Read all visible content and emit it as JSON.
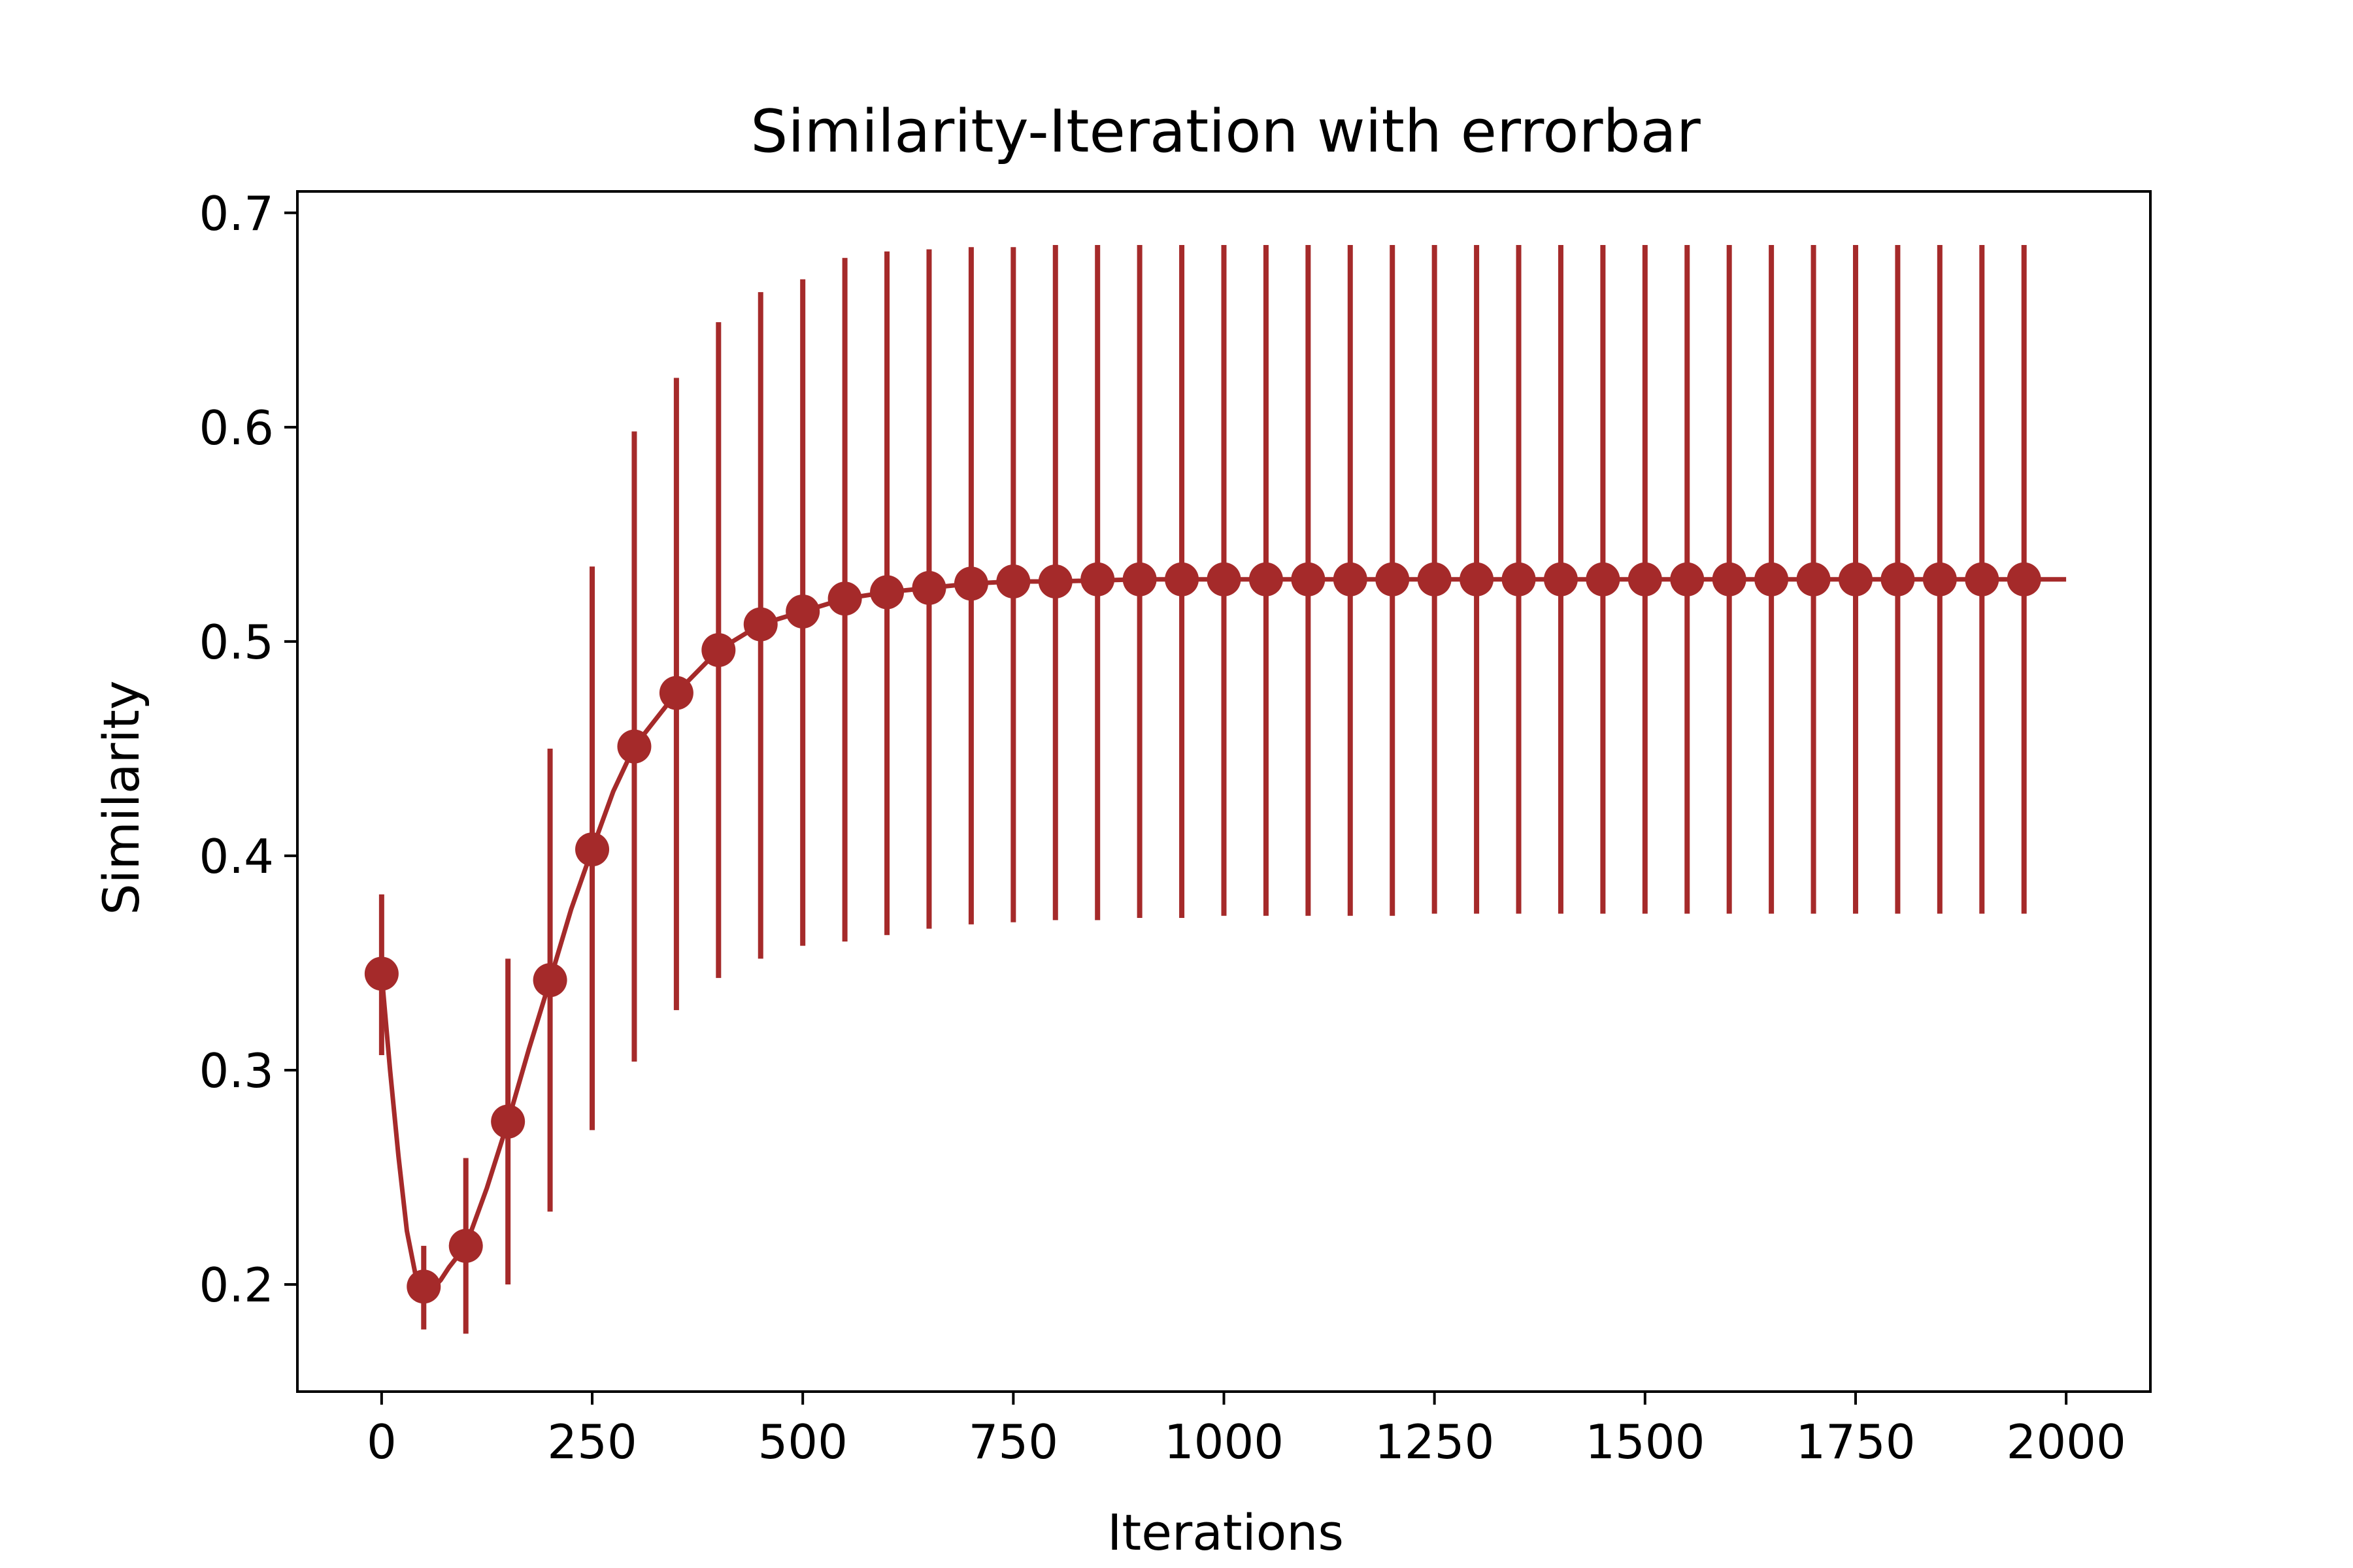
{
  "chart_data": {
    "type": "line",
    "title": "Similarity-Iteration with errorbar",
    "xlabel": "Iterations",
    "ylabel": "Similarity",
    "xlim": [
      -100,
      2100
    ],
    "ylim": [
      0.15,
      0.71
    ],
    "x_ticks": [
      0,
      250,
      500,
      750,
      1000,
      1250,
      1500,
      1750,
      2000
    ],
    "y_ticks": [
      0.2,
      0.3,
      0.4,
      0.5,
      0.6,
      0.7
    ],
    "x_tick_labels": [
      "0",
      "250",
      "500",
      "750",
      "1000",
      "1250",
      "1500",
      "1750",
      "2000"
    ],
    "y_tick_labels": [
      "0.2",
      "0.3",
      "0.4",
      "0.5",
      "0.6",
      "0.7"
    ],
    "grid": false,
    "color": "#a52a2a",
    "line": {
      "x": [
        0,
        10,
        20,
        30,
        40,
        50,
        60,
        70,
        80,
        90,
        100,
        125,
        150,
        175,
        200,
        225,
        250,
        275,
        300,
        350,
        400,
        450,
        500,
        550,
        600,
        650,
        700,
        750,
        800,
        900,
        1000,
        1200,
        1400,
        1600,
        1800,
        1950,
        2000
      ],
      "y": [
        0.345,
        0.3,
        0.26,
        0.225,
        0.205,
        0.197,
        0.198,
        0.202,
        0.208,
        0.213,
        0.218,
        0.245,
        0.276,
        0.31,
        0.342,
        0.375,
        0.403,
        0.43,
        0.451,
        0.476,
        0.496,
        0.508,
        0.514,
        0.52,
        0.523,
        0.525,
        0.527,
        0.528,
        0.528,
        0.529,
        0.529,
        0.529,
        0.529,
        0.529,
        0.529,
        0.529,
        0.529
      ]
    },
    "errorbar_series": {
      "x": [
        0,
        50,
        100,
        150,
        200,
        250,
        300,
        350,
        400,
        450,
        500,
        550,
        600,
        650,
        700,
        750,
        800,
        850,
        900,
        950,
        1000,
        1050,
        1100,
        1150,
        1200,
        1250,
        1300,
        1350,
        1400,
        1450,
        1500,
        1550,
        1600,
        1650,
        1700,
        1750,
        1800,
        1850,
        1900,
        1950
      ],
      "y": [
        0.345,
        0.199,
        0.218,
        0.276,
        0.342,
        0.403,
        0.451,
        0.476,
        0.496,
        0.508,
        0.514,
        0.52,
        0.523,
        0.525,
        0.527,
        0.528,
        0.528,
        0.529,
        0.529,
        0.529,
        0.529,
        0.529,
        0.529,
        0.529,
        0.529,
        0.529,
        0.529,
        0.529,
        0.529,
        0.529,
        0.529,
        0.529,
        0.529,
        0.529,
        0.529,
        0.529,
        0.529,
        0.529,
        0.529,
        0.529
      ],
      "lower": [
        0.307,
        0.179,
        0.177,
        0.2,
        0.234,
        0.272,
        0.304,
        0.328,
        0.343,
        0.352,
        0.358,
        0.36,
        0.363,
        0.366,
        0.368,
        0.369,
        0.37,
        0.37,
        0.371,
        0.371,
        0.372,
        0.372,
        0.372,
        0.372,
        0.372,
        0.373,
        0.373,
        0.373,
        0.373,
        0.373,
        0.373,
        0.373,
        0.373,
        0.373,
        0.373,
        0.373,
        0.373,
        0.373,
        0.373,
        0.373
      ],
      "upper": [
        0.382,
        0.218,
        0.259,
        0.352,
        0.45,
        0.535,
        0.598,
        0.623,
        0.649,
        0.663,
        0.669,
        0.679,
        0.682,
        0.683,
        0.684,
        0.684,
        0.685,
        0.685,
        0.685,
        0.685,
        0.685,
        0.685,
        0.685,
        0.685,
        0.685,
        0.685,
        0.685,
        0.685,
        0.685,
        0.685,
        0.685,
        0.685,
        0.685,
        0.685,
        0.685,
        0.685,
        0.685,
        0.685,
        0.685,
        0.685
      ]
    }
  }
}
